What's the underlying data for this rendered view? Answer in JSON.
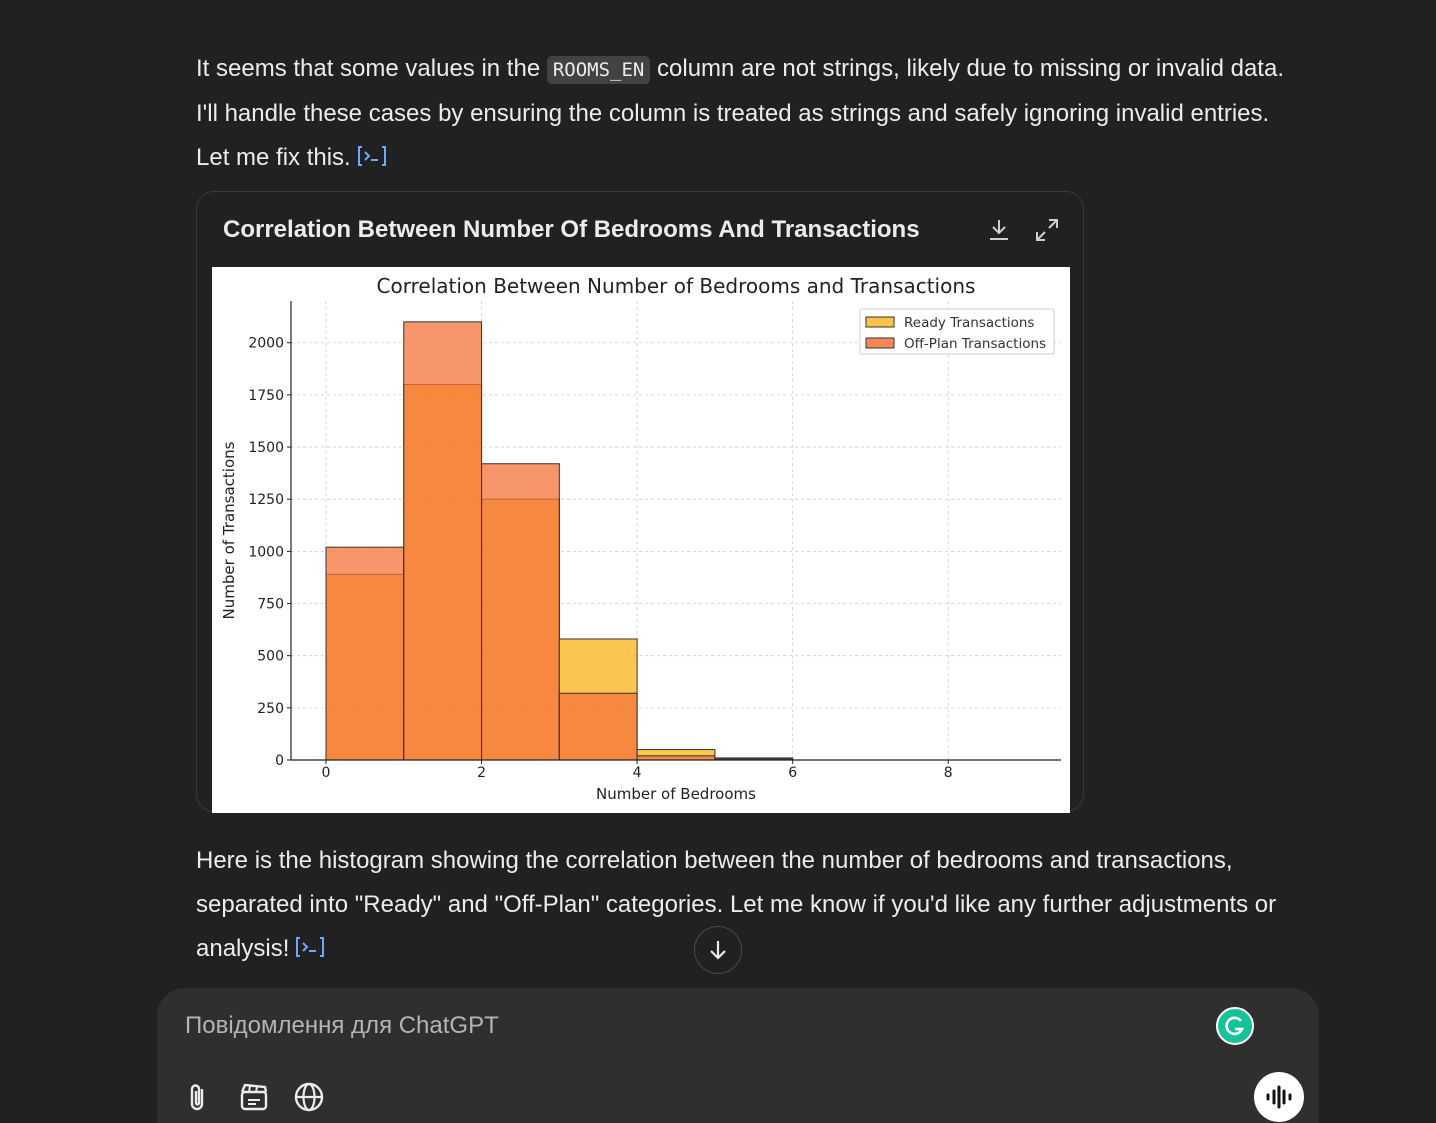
{
  "message1": {
    "before_code": "It seems that some values in the ",
    "code": "ROOMS_EN",
    "after_code": " column are not strings, likely due to missing or invalid data. I'll handle these cases by ensuring the column is treated as strings and safely ignoring invalid entries. Let me fix this."
  },
  "chart_card": {
    "title": "Correlation Between Number Of Bedrooms And Transactions",
    "download_icon": "download-icon",
    "expand_icon": "expand-icon"
  },
  "chart_data": {
    "type": "bar",
    "title": "Correlation Between Number of Bedrooms and Transactions",
    "xlabel": "Number of Bedrooms",
    "ylabel": "Number of Transactions",
    "xlim": [
      -0.45,
      9.45
    ],
    "ylim": [
      0,
      2200
    ],
    "xticks": [
      0,
      2,
      4,
      6,
      8
    ],
    "yticks": [
      0,
      250,
      500,
      750,
      1000,
      1250,
      1500,
      1750,
      2000
    ],
    "bin_edges": [
      0,
      1,
      2,
      3,
      4,
      5,
      6
    ],
    "grid": true,
    "legend_position": "top-right",
    "series": [
      {
        "name": "Ready Transactions",
        "color": "#fbb829",
        "values": [
          890,
          1800,
          1250,
          580,
          50,
          10
        ]
      },
      {
        "name": "Off-Plan Transactions",
        "color": "#f4733a",
        "values": [
          1020,
          2100,
          1420,
          320,
          20,
          5
        ]
      }
    ]
  },
  "message2": {
    "text": "Here is the histogram showing the correlation between the number of bedrooms and transactions, separated into \"Ready\" and \"Off-Plan\" categories. Let me know if you'd like any further adjustments or analysis!"
  },
  "composer": {
    "placeholder": "Повідомлення для ChatGPT",
    "icons": [
      "paperclip-icon",
      "canvas-icon",
      "globe-icon",
      "voice-icon",
      "grammarly-icon",
      "arrow-down-icon"
    ]
  }
}
